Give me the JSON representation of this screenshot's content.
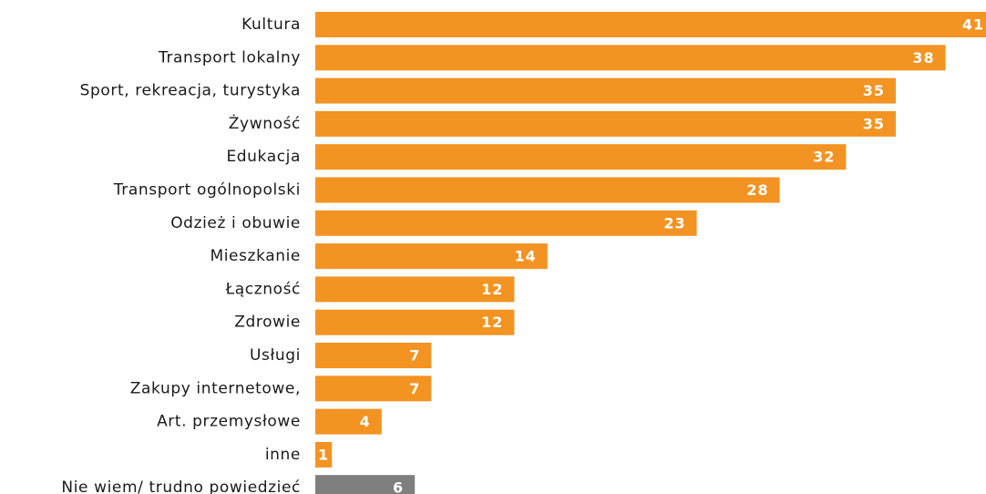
{
  "chart_data": {
    "type": "bar",
    "orientation": "horizontal",
    "categories": [
      "Kultura",
      "Transport lokalny",
      "Sport, rekreacja, turystyka",
      "Żywność",
      "Edukacja",
      "Transport ogólnopolski",
      "Odzież i obuwie",
      "Mieszkanie",
      "Łączność",
      "Zdrowie",
      "Usługi",
      "Zakupy internetowe,",
      "Art. przemysłowe",
      "inne",
      "Nie wiem/ trudno powiedzieć"
    ],
    "values": [
      41,
      38,
      35,
      35,
      32,
      28,
      23,
      14,
      12,
      12,
      7,
      7,
      4,
      1,
      6
    ],
    "value_labels": [
      "41",
      "38",
      "35",
      "35",
      "32",
      "28",
      "23",
      "14",
      "12",
      "12",
      "7",
      "7",
      "4",
      "1",
      "6"
    ],
    "bar_colors": [
      "#f39322",
      "#f39322",
      "#f39322",
      "#f39322",
      "#f39322",
      "#f39322",
      "#f39322",
      "#f39322",
      "#f39322",
      "#f39322",
      "#f39322",
      "#f39322",
      "#f39322",
      "#f39322",
      "#7f7f7f"
    ],
    "title": "",
    "xlabel": "",
    "ylabel": "",
    "xlim": [
      0,
      41
    ],
    "grid": false,
    "legend": "none"
  }
}
